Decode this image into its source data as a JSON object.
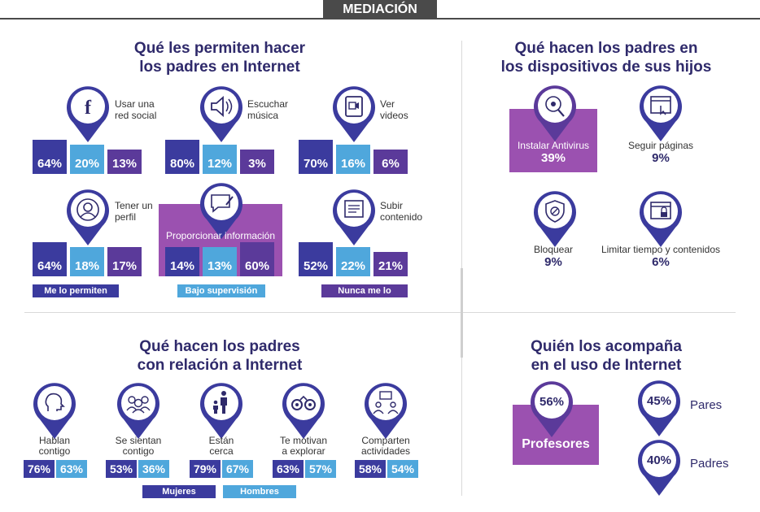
{
  "banner": "MEDIACIÓN",
  "section1": {
    "title_l1": "Qué les permiten hacer",
    "title_l2": "los padres en Internet",
    "items": [
      {
        "label_l1": "Usar una",
        "label_l2": "red social",
        "v1": "64%",
        "v2": "20%",
        "v3": "13%",
        "icon": "facebook-icon"
      },
      {
        "label_l1": "Escuchar",
        "label_l2": "música",
        "v1": "80%",
        "v2": "12%",
        "v3": "3%",
        "icon": "speaker-icon"
      },
      {
        "label_l1": "Ver",
        "label_l2": "videos",
        "v1": "70%",
        "v2": "16%",
        "v3": "6%",
        "icon": "video-icon"
      },
      {
        "label_l1": "Tener un",
        "label_l2": "perfil",
        "v1": "64%",
        "v2": "18%",
        "v3": "17%",
        "icon": "profile-icon"
      },
      {
        "label": "Proporcionar información",
        "v1": "14%",
        "v2": "13%",
        "v3": "60%",
        "icon": "chat-edit-icon"
      },
      {
        "label_l1": "Subir",
        "label_l2": "contenido",
        "v1": "52%",
        "v2": "22%",
        "v3": "21%",
        "icon": "upload-icon"
      }
    ],
    "legend": [
      "Me lo permiten",
      "Bajo supervisión",
      "Nunca me lo permiten"
    ]
  },
  "section2": {
    "title_l1": "Qué hacen los padres en",
    "title_l2": "los dispositivos de sus hijos",
    "items": [
      {
        "label": "Instalar Antivirus",
        "value": "39%",
        "icon": "antivirus-icon"
      },
      {
        "label": "Seguir páginas",
        "value": "9%",
        "icon": "browser-click-icon"
      },
      {
        "label": "Bloquear",
        "value": "9%",
        "icon": "block-shield-icon"
      },
      {
        "label": "Limitar tiempo y contenidos",
        "value": "6%",
        "icon": "browser-lock-icon"
      }
    ]
  },
  "section3": {
    "title_l1": "Qué hacen los padres",
    "title_l2": "con relación a Internet",
    "items": [
      {
        "label_l1": "Hablan",
        "label_l2": "contigo",
        "v1": "76%",
        "v2": "63%",
        "icon": "talk-icon"
      },
      {
        "label_l1": "Se sientan",
        "label_l2": "contigo",
        "v1": "53%",
        "v2": "36%",
        "icon": "people-icon"
      },
      {
        "label_l1": "Están",
        "label_l2": "cerca",
        "v1": "79%",
        "v2": "67%",
        "icon": "parent-child-icon"
      },
      {
        "label_l1": "Te motivan",
        "label_l2": "a explorar",
        "v1": "63%",
        "v2": "57%",
        "icon": "binoculars-icon"
      },
      {
        "label_l1": "Comparten",
        "label_l2": "actividades",
        "v1": "58%",
        "v2": "54%",
        "icon": "sharing-icon"
      }
    ],
    "legend": [
      "Mujeres",
      "Hombres"
    ]
  },
  "section4": {
    "title_l1": "Quién los acompaña",
    "title_l2": "en el uso de Internet",
    "items": [
      {
        "label": "Profesores",
        "value": "56%"
      },
      {
        "label": "Pares",
        "value": "45%"
      },
      {
        "label": "Padres",
        "value": "40%"
      }
    ]
  },
  "colors": {
    "dark": "#3b3b9e",
    "light": "#4fa7dc",
    "purple": "#5b3a9a",
    "highlight": "#9b51b0"
  }
}
